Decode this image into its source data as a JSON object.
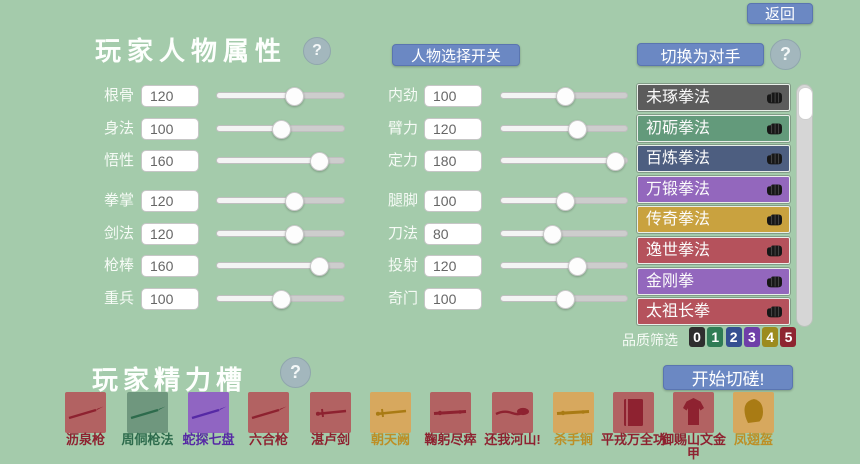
{
  "header": {
    "title": "玩家人物属性",
    "help_label": "?",
    "char_select_label": "人物选择开关",
    "switch_opponent_label": "切换为对手",
    "switch_help_label": "?",
    "back_label": "返回"
  },
  "attributes": {
    "left_column": [
      {
        "label": "根骨",
        "value": "120"
      },
      {
        "label": "身法",
        "value": "100"
      },
      {
        "label": "悟性",
        "value": "160"
      },
      {
        "label": "拳掌",
        "value": "120"
      },
      {
        "label": "剑法",
        "value": "120"
      },
      {
        "label": "枪棒",
        "value": "160"
      },
      {
        "label": "重兵",
        "value": "100"
      }
    ],
    "middle_column": [
      {
        "label": "内劲",
        "value": "100"
      },
      {
        "label": "臂力",
        "value": "120"
      },
      {
        "label": "定力",
        "value": "180"
      },
      {
        "label": "腿脚",
        "value": "100"
      },
      {
        "label": "刀法",
        "value": "80"
      },
      {
        "label": "投射",
        "value": "120"
      },
      {
        "label": "奇门",
        "value": "100"
      }
    ]
  },
  "skill_list": {
    "icon": "fist-icon",
    "items": [
      {
        "label": "未琢拳法",
        "color": "#5c5c5c"
      },
      {
        "label": "初砺拳法",
        "color": "#639a7b"
      },
      {
        "label": "百炼拳法",
        "color": "#4d5e80"
      },
      {
        "label": "万锻拳法",
        "color": "#9367bd"
      },
      {
        "label": "传奇拳法",
        "color": "#c9a23f"
      },
      {
        "label": "逸世拳法",
        "color": "#b5525c"
      },
      {
        "label": "金刚拳",
        "color": "#9367bd"
      },
      {
        "label": "太祖长拳",
        "color": "#b5525c"
      }
    ]
  },
  "quality_filter": {
    "label": "品质筛选",
    "options": [
      {
        "label": "0",
        "color": "#2e2e2e"
      },
      {
        "label": "1",
        "color": "#2f7c55"
      },
      {
        "label": "2",
        "color": "#354f91"
      },
      {
        "label": "3",
        "color": "#6f3fa8"
      },
      {
        "label": "4",
        "color": "#9c8b1e"
      },
      {
        "label": "5",
        "color": "#8e2430"
      }
    ]
  },
  "energy": {
    "title": "玩家精力槽",
    "help_label": "?",
    "start_label": "开始切磋!",
    "items": [
      {
        "label": "沥泉枪",
        "card": "#b26262",
        "ink": "#8e2230",
        "text": "#8e2230",
        "glyph": "spear"
      },
      {
        "label": "周侗枪法",
        "card": "#6f977e",
        "ink": "#2d6b4c",
        "text": "#2d6b4c",
        "glyph": "spear"
      },
      {
        "label": "蛇探七盘",
        "card": "#9065c2",
        "ink": "#5629a5",
        "text": "#5629a5",
        "glyph": "spear"
      },
      {
        "label": "六合枪",
        "card": "#b26262",
        "ink": "#8e2230",
        "text": "#8e2230",
        "glyph": "spear"
      },
      {
        "label": "湛卢剑",
        "card": "#b26262",
        "ink": "#8e2230",
        "text": "#8e2230",
        "glyph": "sword"
      },
      {
        "label": "朝天阙",
        "card": "#d7a85e",
        "ink": "#a97b14",
        "text": "#bd8f25",
        "glyph": "sword"
      },
      {
        "label": "鞠躬尽瘁",
        "card": "#b26262",
        "ink": "#8e2230",
        "text": "#8e2230",
        "glyph": "rod"
      },
      {
        "label": "还我河山!",
        "card": "#b26262",
        "ink": "#8e2230",
        "text": "#8e2230",
        "glyph": "brush"
      },
      {
        "label": "杀手锏",
        "card": "#d7a85e",
        "ink": "#a97b14",
        "text": "#bd8f25",
        "glyph": "rod"
      },
      {
        "label": "平戎万全功",
        "card": "#b26262",
        "ink": "#8e2230",
        "text": "#8e2230",
        "glyph": "book"
      },
      {
        "label": "御赐山文金甲",
        "card": "#b26262",
        "ink": "#8e2230",
        "text": "#8e2230",
        "glyph": "armor"
      },
      {
        "label": "凤翅盔",
        "card": "#d7a85e",
        "ink": "#a97b14",
        "text": "#bd8f25",
        "glyph": "helmet"
      }
    ]
  }
}
